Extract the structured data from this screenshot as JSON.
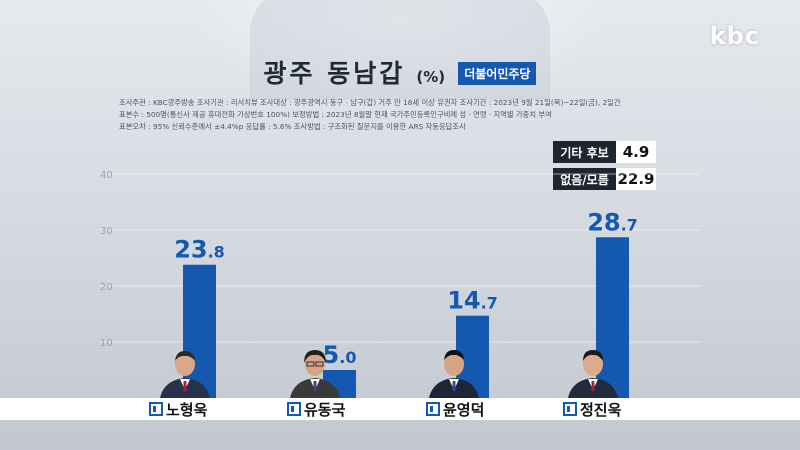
{
  "logo": "kbc",
  "title": "광주 동남갑",
  "unit": "(%)",
  "party": "더불어민주당",
  "meta_lines": [
    "조사주관 : KBC광주방송    조사기관 : 리서치뷰    조사대상 : 광주광역시 동구 · 남구(갑) 거주 만 18세 이상 유권자    조사기간 : 2023년 9월 21일(목)~22일(금), 2일간",
    "표본수 : 500명(통신사 제공 휴대전화 가상번호 100%)    보정방법 : 2023년 8월말 현재 국가주민등록인구비례 성 · 연령 · 지역별 가중치 부여",
    "표본오차 : 95% 신뢰수준에서 ±4.4%p    응답률 : 5.6%    조사방법 : 구조화된 질문지를 이용한 ARS 자동응답조사"
  ],
  "others": [
    {
      "label": "기타 후보",
      "value": "4.9"
    },
    {
      "label": "없음/모름",
      "value": "22.9"
    }
  ],
  "colors": {
    "bar": "#1558b0",
    "badge": "#1558b0",
    "dark": "#1e2430"
  },
  "chart_data": {
    "type": "bar",
    "categories": [
      "노형욱",
      "유동국",
      "윤영덕",
      "정진욱"
    ],
    "values": [
      23.8,
      5.0,
      14.7,
      28.7
    ],
    "value_labels": [
      "23.8",
      "5.0",
      "14.7",
      "28.7"
    ],
    "yticks": [
      10,
      20,
      30,
      40
    ],
    "ylim": [
      0,
      40
    ],
    "grid": true
  }
}
